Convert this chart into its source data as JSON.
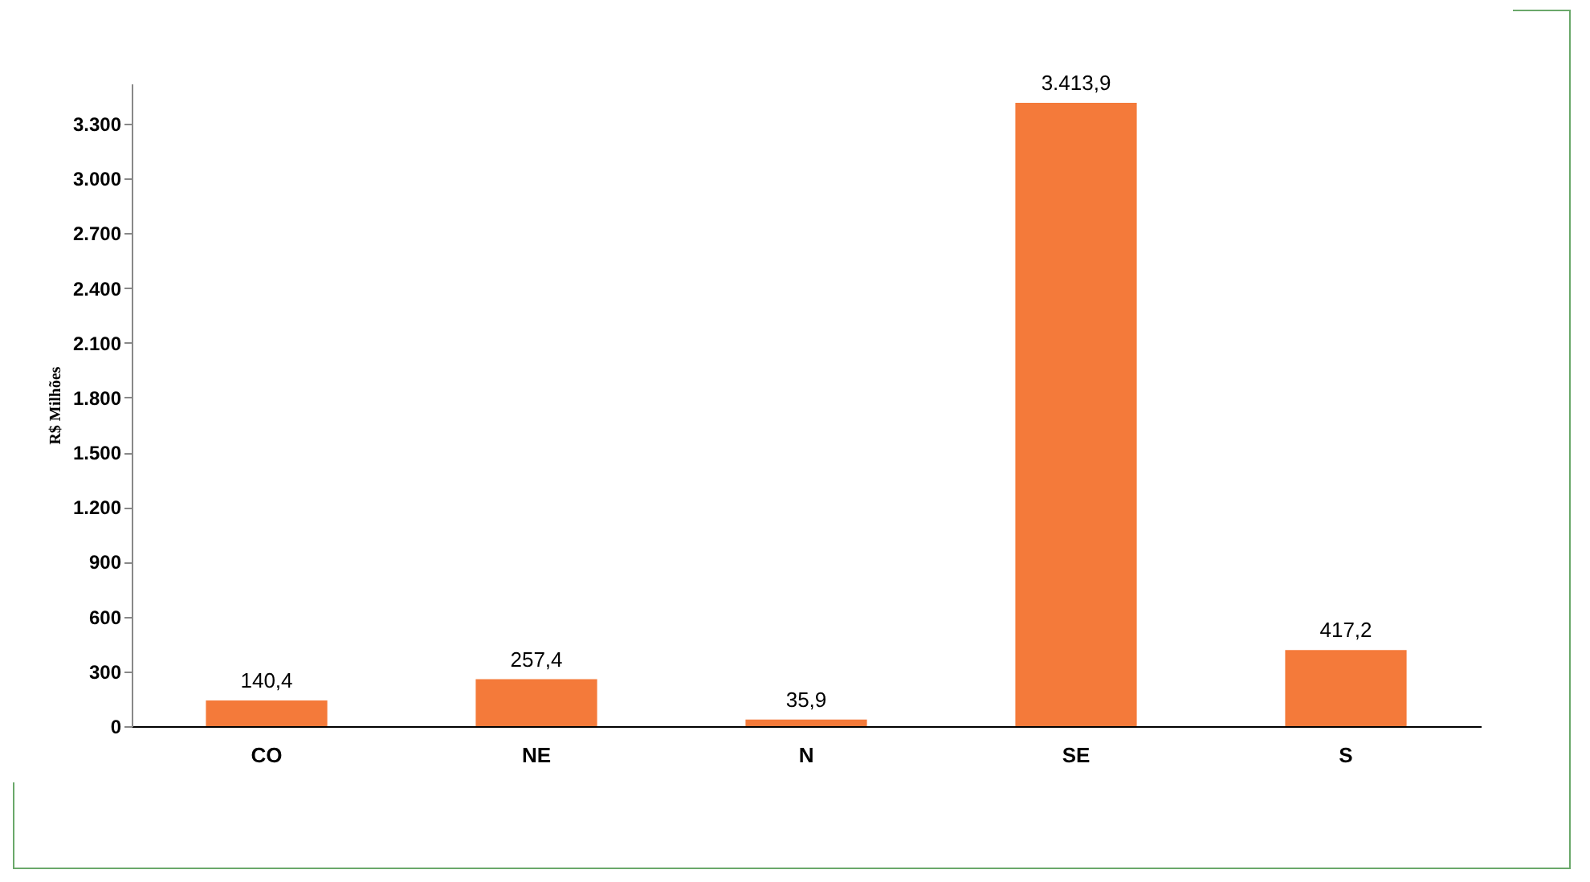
{
  "chart_data": {
    "type": "bar",
    "ylabel": "R$ Milhões",
    "categories": [
      "CO",
      "NE",
      "N",
      "SE",
      "S"
    ],
    "values": [
      140.4,
      257.4,
      35.9,
      3413.9,
      417.2
    ],
    "value_labels": [
      "140,4",
      "257,4",
      "35,9",
      "3.413,9",
      "417,2"
    ],
    "color": "#f47a3a",
    "ylim": [
      0,
      3520
    ],
    "yticks": [
      0,
      {
        "value": 300,
        "label": "300"
      },
      {
        "value": 600,
        "label": "600"
      },
      {
        "value": 900,
        "label": "900"
      },
      {
        "value": 1200,
        "label": "1.200"
      },
      {
        "value": 1500,
        "label": "1.500"
      },
      {
        "value": 1800,
        "label": "1.800"
      },
      {
        "value": 2100,
        "label": "2.100"
      },
      {
        "value": 2400,
        "label": "2.400"
      },
      {
        "value": 2700,
        "label": "2.700"
      },
      {
        "value": 3000,
        "label": "3.000"
      },
      {
        "value": 3300,
        "label": "3.300"
      }
    ],
    "grid": false
  }
}
